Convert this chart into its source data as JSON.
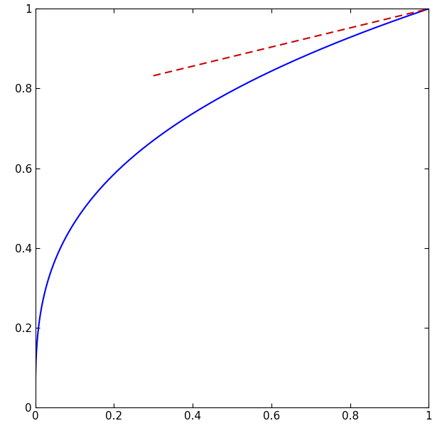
{
  "blue_curve_power": 0.333,
  "red_line_x_start": 0.3,
  "red_line_x_end": 1.0,
  "red_line_y_start": 0.832,
  "red_line_y_end": 1.0,
  "xlim": [
    0,
    1
  ],
  "ylim": [
    0,
    1
  ],
  "xticks": [
    0,
    0.2,
    0.4,
    0.6,
    0.8,
    1.0
  ],
  "yticks": [
    0,
    0.2,
    0.4,
    0.6,
    0.8,
    1.0
  ],
  "blue_color": "#0000FF",
  "red_color": "#CC0000",
  "blue_linewidth": 1.5,
  "red_linewidth": 1.5,
  "background_color": "#FFFFFF",
  "figsize": [
    6.22,
    6.16
  ],
  "dpi": 100
}
